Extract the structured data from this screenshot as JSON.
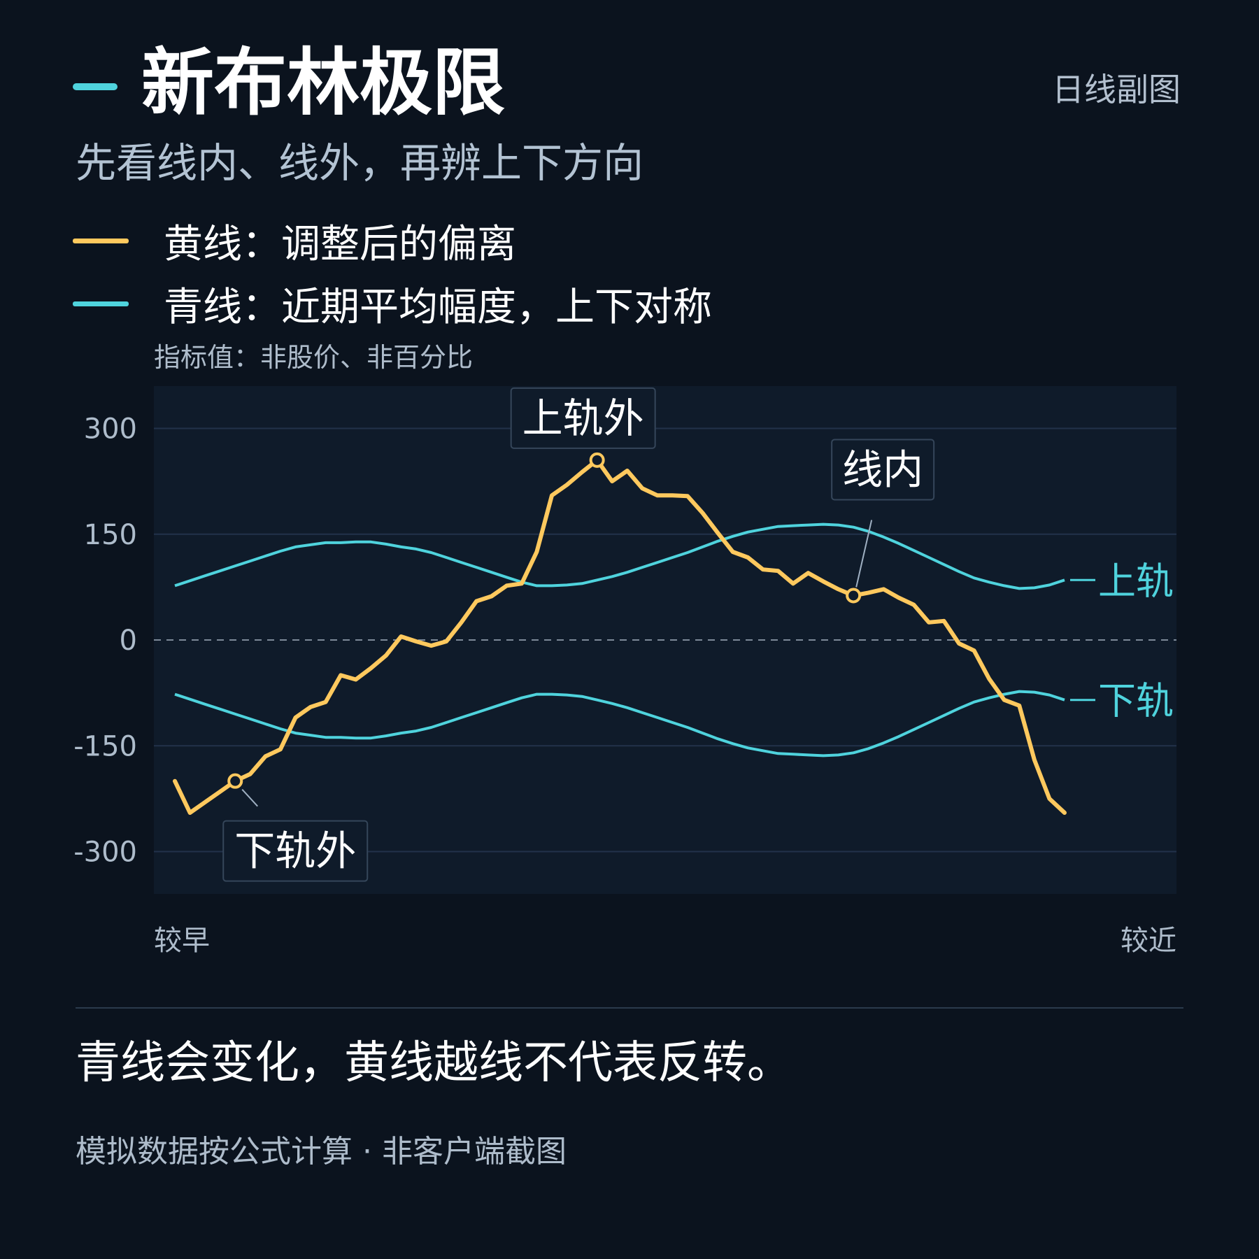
{
  "header": {
    "title": "新布林极限",
    "badge": "日线副图",
    "subtitle": "先看线内、线外，再辨上下方向"
  },
  "legend": [
    {
      "label": "黄线：调整后的偏离",
      "color": "#ffc95e"
    },
    {
      "label": "青线：近期平均幅度，上下对称",
      "color": "#4fd3dd"
    }
  ],
  "note": "指标值：非股价、非百分比",
  "colors": {
    "background": "#0b131e",
    "plot_bg": "#0f1b2a",
    "yellow": "#ffc95e",
    "cyan": "#4fd3dd",
    "grid": "#22324a",
    "zero_line": "#7d8a99"
  },
  "chart_data": {
    "type": "line",
    "ylim": [
      -360,
      360
    ],
    "y_ticks": [
      300,
      150,
      0,
      -150,
      -300
    ],
    "x_start_label": "较早",
    "x_end_label": "较近",
    "x": [
      0,
      1,
      2,
      3,
      4,
      5,
      6,
      7,
      8,
      9,
      10,
      11,
      12,
      13,
      14,
      15,
      16,
      17,
      18,
      19,
      20,
      21,
      22,
      23,
      24,
      25,
      26,
      27,
      28,
      29,
      30,
      31,
      32,
      33,
      34,
      35,
      36,
      37,
      38,
      39,
      40,
      41,
      42,
      43,
      44,
      45,
      46,
      47,
      48,
      49,
      50,
      51,
      52,
      53,
      54,
      55,
      56,
      57,
      58,
      59
    ],
    "series": [
      {
        "role": "deviation",
        "values": [
          -200,
          -245,
          -230,
          -215,
          -200,
          -190,
          -165,
          -155,
          -110,
          -95,
          -88,
          -50,
          -56,
          -40,
          -22,
          5,
          -2,
          -8,
          -2,
          25,
          55,
          62,
          77,
          80,
          125,
          205,
          220,
          238,
          255,
          225,
          240,
          215,
          205,
          205,
          204,
          180,
          152,
          125,
          117,
          100,
          98,
          80,
          95,
          83,
          72,
          63,
          67,
          72,
          60,
          50,
          25,
          27,
          -5,
          -15,
          -55,
          -85,
          -93,
          -170,
          -225,
          -245
        ]
      },
      {
        "name": "上轨",
        "values": [
          77,
          84,
          91,
          98,
          105,
          112,
          119,
          126,
          132,
          135,
          138,
          138,
          139,
          139,
          136,
          132,
          129,
          124,
          117,
          110,
          103,
          96,
          89,
          82,
          77,
          77,
          78,
          80,
          85,
          90,
          96,
          103,
          110,
          117,
          124,
          132,
          140,
          147,
          153,
          157,
          161,
          162,
          163,
          164,
          163,
          160,
          154,
          146,
          137,
          127,
          117,
          107,
          97,
          88,
          82,
          77,
          73,
          74,
          78,
          85
        ]
      },
      {
        "name": "下轨",
        "values": [
          -77,
          -84,
          -91,
          -98,
          -105,
          -112,
          -119,
          -126,
          -132,
          -135,
          -138,
          -138,
          -139,
          -139,
          -136,
          -132,
          -129,
          -124,
          -117,
          -110,
          -103,
          -96,
          -89,
          -82,
          -77,
          -77,
          -78,
          -80,
          -85,
          -90,
          -96,
          -103,
          -110,
          -117,
          -124,
          -132,
          -140,
          -147,
          -153,
          -157,
          -161,
          -162,
          -163,
          -164,
          -163,
          -160,
          -154,
          -146,
          -137,
          -127,
          -117,
          -107,
          -97,
          -88,
          -82,
          -77,
          -73,
          -74,
          -78,
          -85
        ]
      }
    ],
    "annotations": [
      {
        "text": "上轨外",
        "x": 28,
        "y": 255
      },
      {
        "text": "线内",
        "x": 45,
        "y": 63
      },
      {
        "text": "下轨外",
        "x": 4,
        "y": -200
      }
    ]
  },
  "takeaway": "青线会变化，黄线越线不代表反转。",
  "footer": "模拟数据按公式计算 · 非客户端截图"
}
